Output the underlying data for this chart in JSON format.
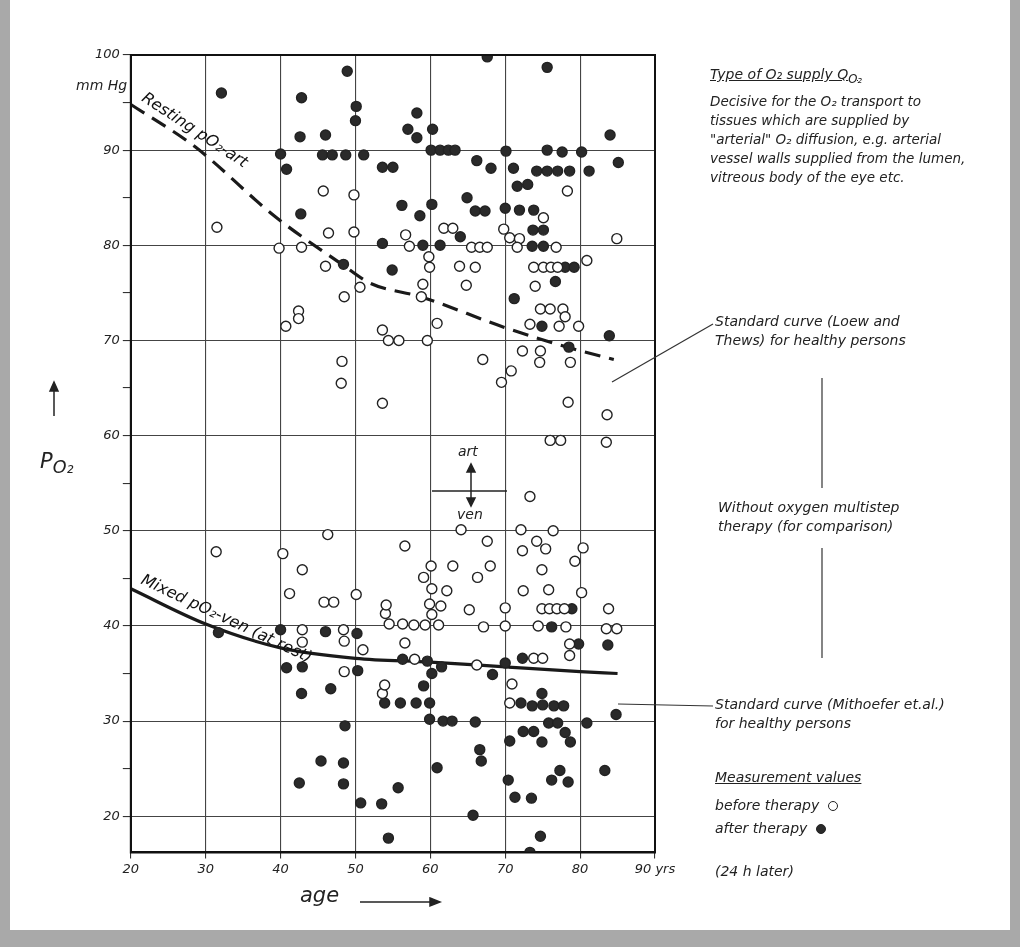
{
  "chart_data": {
    "type": "scatter",
    "xlabel": "age",
    "ylabel": "P$_{O₂}$",
    "legend_title": "Measurement values",
    "legend": "right",
    "grid": true,
    "marker": "circle",
    "xlim": [
      20,
      90
    ],
    "ylim": [
      16.2,
      100
    ],
    "xticks": [
      20,
      30,
      40,
      50,
      60,
      70,
      80,
      {
        "value": 90,
        "label": "90 yrs"
      }
    ],
    "yticks": [
      20,
      {
        "value": 25,
        "label": null
      },
      30,
      {
        "value": 35,
        "label": null
      },
      40,
      {
        "value": 45,
        "label": null
      },
      50,
      {
        "value": 55,
        "label": null
      },
      60,
      {
        "value": 65,
        "label": null
      },
      70,
      {
        "value": 75,
        "label": null
      },
      80,
      {
        "value": 85,
        "label": null
      },
      90,
      {
        "value": 95,
        "label": null
      },
      100
    ],
    "annotations": [
      "mm Hg",
      "Type of O₂ supply Q$_{O₂}$",
      "Decisive for the O₂ transport to tissues which are supplied by \"arterial\" O₂ diffusion, e.g. arterial vessel walls supplied from the lumen, vitreous body of the eye etc.",
      "Standard curve (Loew and Thews) for healthy persons",
      "Without oxygen multistep therapy (for comparison)",
      "Standard curve (Mithoefer et.al.) for healthy persons",
      "art",
      "ven",
      "(24 h later)"
    ],
    "series": [
      {
        "name": "before therapy",
        "type": "scatter",
        "color": "#ffffff",
        "x": [
          31.5,
          39.8,
          42.8,
          45.7,
          49.8,
          46.4,
          49.8,
          46,
          50.6,
          48.5,
          42.4,
          42.4,
          40.7,
          48.2,
          48.1,
          78.3,
          61.8,
          63,
          56.7,
          57.2,
          75.1,
          69.8,
          70.6,
          71.9,
          71.6,
          76.8,
          84.9,
          65.5,
          66.6,
          67.6,
          59.8,
          59.9,
          63.9,
          66,
          80.9,
          73.8,
          75.1,
          76.1,
          77,
          59,
          58.8,
          64.8,
          74,
          74.7,
          76,
          77.7,
          78,
          77.2,
          79.8,
          73.3,
          60.9,
          53.6,
          54.4,
          55.8,
          59.6,
          67,
          72.3,
          74.7,
          74.6,
          78.7,
          70.8,
          69.5,
          53.6,
          78.4,
          83.6,
          76,
          77.4,
          83.5,
          31.4,
          40.3,
          46.3,
          42.9,
          41.2,
          45.8,
          47.1,
          50.1,
          54,
          42.9,
          42.9,
          48.4,
          48.5,
          51,
          48.5,
          53.6,
          73.3,
          64.1,
          72.1,
          76.4,
          56.6,
          67.6,
          74.2,
          75.4,
          72.3,
          80.4,
          79.3,
          60.1,
          63,
          68,
          59.1,
          66.3,
          74.9,
          60.2,
          62.2,
          72.4,
          75.8,
          80.2,
          54.1,
          59.9,
          61.4,
          60.2,
          65.2,
          70,
          74.9,
          75.9,
          76.9,
          77.9,
          83.8,
          54.5,
          56.3,
          57.8,
          59.3,
          61.1,
          67.1,
          70,
          74.4,
          78.1,
          83.5,
          84.9,
          56.6,
          78.6,
          78.6,
          57.9,
          66.2,
          73.8,
          75,
          53.9,
          70.9,
          70.6
        ],
        "values": [
          81.9,
          79.7,
          79.8,
          85.7,
          85.3,
          81.3,
          81.4,
          77.8,
          75.6,
          74.6,
          73.1,
          72.3,
          71.5,
          67.8,
          65.5,
          85.7,
          81.8,
          81.8,
          81.1,
          79.9,
          82.9,
          81.7,
          80.8,
          80.7,
          79.8,
          79.8,
          80.7,
          79.8,
          79.8,
          79.8,
          78.8,
          77.7,
          77.8,
          77.7,
          78.4,
          77.7,
          77.7,
          77.7,
          77.7,
          75.9,
          74.6,
          75.8,
          75.7,
          73.3,
          73.3,
          73.3,
          72.5,
          71.5,
          71.5,
          71.7,
          71.8,
          71.1,
          70,
          70,
          70,
          68,
          68.9,
          68.9,
          67.7,
          67.7,
          66.8,
          65.6,
          63.4,
          63.5,
          62.2,
          59.5,
          59.5,
          59.3,
          47.8,
          47.6,
          49.6,
          45.9,
          43.4,
          42.5,
          42.5,
          43.3,
          41.3,
          39.6,
          38.3,
          39.6,
          38.4,
          37.5,
          35.2,
          32.9,
          53.6,
          50.1,
          50.1,
          50,
          48.4,
          48.9,
          48.9,
          48.1,
          47.9,
          48.2,
          46.8,
          46.3,
          46.3,
          46.3,
          45.1,
          45.1,
          45.9,
          43.9,
          43.7,
          43.7,
          43.8,
          43.5,
          42.2,
          42.3,
          42.1,
          41.2,
          41.7,
          41.9,
          41.8,
          41.8,
          41.8,
          41.8,
          41.8,
          40.2,
          40.2,
          40.1,
          40.1,
          40.1,
          39.9,
          40,
          40,
          39.9,
          39.7,
          39.7,
          38.2,
          38.1,
          36.9,
          36.5,
          35.9,
          36.6,
          36.6,
          33.8,
          33.9,
          31.9
        ]
      },
      {
        "name": "after therapy",
        "type": "scatter",
        "color": "#2a2a2a",
        "x": [
          32.1,
          42.8,
          42.6,
          40,
          40.8,
          42.7,
          46,
          45.6,
          46.9,
          48.7,
          51.1,
          48.9,
          50.1,
          50,
          48.4,
          67.6,
          75.6,
          58.2,
          57,
          58.2,
          60.3,
          60.1,
          61.3,
          62.4,
          63.3,
          70.1,
          75.6,
          77.6,
          80.2,
          84,
          85.1,
          53.6,
          55,
          66.2,
          68.1,
          71.1,
          74.2,
          75.6,
          77,
          78.6,
          81.2,
          71.6,
          73,
          60.2,
          56.2,
          58.6,
          64.9,
          66,
          67.3,
          70,
          71.9,
          73.8,
          73.7,
          75.1,
          64,
          53.6,
          59,
          61.3,
          73.6,
          75.1,
          78,
          79.2,
          54.9,
          76.7,
          71.2,
          74.9,
          83.9,
          78.5,
          31.7,
          40,
          46,
          50.2,
          40.8,
          42.9,
          50.3,
          46.7,
          42.8,
          48.6,
          45.4,
          48.4,
          42.5,
          48.4,
          50.7,
          53.5,
          54.4,
          78.9,
          76.2,
          79.8,
          83.7,
          56.3,
          59.6,
          61.5,
          70,
          72.3,
          60.2,
          68.3,
          59.1,
          53.9,
          56,
          58.1,
          59.9,
          72.1,
          73.6,
          75,
          76.5,
          77.8,
          74.9,
          59.9,
          61.7,
          62.9,
          66,
          75.8,
          77,
          80.9,
          84.8,
          72.4,
          73.8,
          78,
          78.7,
          74.9,
          70.6,
          66.6,
          66.8,
          60.9,
          77.3,
          83.3,
          70.4,
          76.2,
          78.4,
          71.3,
          73.5,
          55.7,
          65.7,
          74.7,
          73.3
        ],
        "values": [
          96,
          95.5,
          91.4,
          89.6,
          88,
          83.3,
          91.6,
          89.5,
          89.5,
          89.5,
          89.5,
          98.3,
          94.6,
          93.1,
          78,
          99.8,
          98.7,
          93.9,
          92.2,
          91.3,
          92.2,
          90,
          90,
          90,
          90,
          89.9,
          90,
          89.8,
          89.8,
          91.6,
          88.7,
          88.2,
          88.2,
          88.9,
          88.1,
          88.1,
          87.8,
          87.8,
          87.8,
          87.8,
          87.8,
          86.2,
          86.4,
          84.3,
          84.2,
          83.1,
          85,
          83.6,
          83.6,
          83.9,
          83.7,
          83.7,
          81.6,
          81.6,
          80.9,
          80.2,
          80,
          80,
          79.9,
          79.9,
          77.7,
          77.7,
          77.4,
          76.2,
          74.4,
          71.5,
          70.5,
          69.3,
          39.3,
          39.6,
          39.4,
          39.2,
          35.6,
          35.7,
          35.3,
          33.4,
          32.9,
          29.5,
          25.8,
          25.6,
          23.5,
          23.4,
          21.4,
          21.3,
          17.7,
          41.8,
          39.9,
          38.1,
          38,
          36.5,
          36.3,
          35.7,
          36.1,
          36.6,
          35,
          34.9,
          33.7,
          31.9,
          31.9,
          31.9,
          31.9,
          31.9,
          31.6,
          31.7,
          31.6,
          31.6,
          32.9,
          30.2,
          30,
          30,
          29.9,
          29.8,
          29.8,
          29.8,
          30.7,
          28.9,
          28.9,
          28.8,
          27.8,
          27.8,
          27.9,
          27,
          25.8,
          25.1,
          24.8,
          24.8,
          23.8,
          23.8,
          23.6,
          22,
          21.9,
          23,
          20.1,
          17.9,
          16.2
        ]
      },
      {
        "name": "Resting pO₂-art",
        "type": "line",
        "color": "#1a1a1a",
        "marker": "none",
        "line_style": "dashed",
        "x": [
          20,
          28.5,
          39.3,
          48.2,
          52,
          58.7,
          69.8,
          78.7,
          84.5
        ],
        "values": [
          94.8,
          90.4,
          83,
          78,
          76,
          74.6,
          71.4,
          69.2,
          68
        ]
      },
      {
        "name": "Mixed pO₂-ven (at rest)",
        "type": "line",
        "color": "#1a1a1a",
        "marker": "none",
        "line_style": "solid",
        "x": [
          20,
          30,
          40,
          50,
          60,
          70,
          80,
          85
        ],
        "values": [
          43.9,
          40.2,
          37.7,
          36.6,
          36.2,
          35.7,
          35.2,
          35
        ]
      }
    ]
  }
}
